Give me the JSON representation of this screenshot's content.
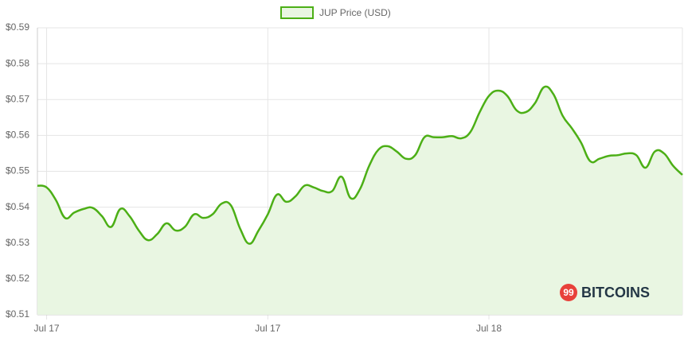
{
  "chart_data": {
    "type": "line",
    "series": [
      {
        "name": "JUP Price (USD)",
        "color": "#4caf16",
        "fill": "#e9f6e2",
        "values": [
          0.546,
          0.5455,
          0.542,
          0.537,
          0.5385,
          0.5395,
          0.5398,
          0.5375,
          0.5345,
          0.5395,
          0.5375,
          0.5335,
          0.5308,
          0.5325,
          0.5355,
          0.5335,
          0.5345,
          0.538,
          0.537,
          0.538,
          0.541,
          0.5405,
          0.534,
          0.5298,
          0.5335,
          0.538,
          0.5435,
          0.5415,
          0.543,
          0.546,
          0.5455,
          0.5445,
          0.5445,
          0.5485,
          0.5425,
          0.545,
          0.5515,
          0.556,
          0.557,
          0.5555,
          0.5535,
          0.5545,
          0.5595,
          0.5595,
          0.5595,
          0.5598,
          0.5592,
          0.561,
          0.5665,
          0.571,
          0.5725,
          0.571,
          0.567,
          0.5665,
          0.569,
          0.5735,
          0.5715,
          0.5655,
          0.562,
          0.558,
          0.5528,
          0.5535,
          0.5543,
          0.5545,
          0.555,
          0.5545,
          0.551,
          0.5555,
          0.555,
          0.5515,
          0.549
        ]
      }
    ],
    "categories": [
      null,
      "Jul 17",
      null,
      null,
      null,
      null,
      null,
      null,
      null,
      null,
      null,
      null,
      null,
      null,
      null,
      null,
      null,
      null,
      null,
      null,
      null,
      null,
      null,
      null,
      null,
      "Jul 17",
      null,
      null,
      null,
      null,
      null,
      null,
      null,
      null,
      null,
      null,
      null,
      null,
      null,
      null,
      null,
      null,
      null,
      null,
      null,
      null,
      null,
      null,
      null,
      "Jul 18",
      null,
      null,
      null,
      null,
      null,
      null,
      null,
      null,
      null,
      null,
      null,
      null,
      null,
      null,
      null,
      null,
      null,
      null,
      null,
      null,
      null
    ],
    "ylim": [
      0.51,
      0.59
    ],
    "yticks": [
      {
        "value": 0.51,
        "label": "$0.51"
      },
      {
        "value": 0.52,
        "label": "$0.52"
      },
      {
        "value": 0.53,
        "label": "$0.53"
      },
      {
        "value": 0.54,
        "label": "$0.54"
      },
      {
        "value": 0.55,
        "label": "$0.55"
      },
      {
        "value": 0.56,
        "label": "$0.56"
      },
      {
        "value": 0.57,
        "label": "$0.57"
      },
      {
        "value": 0.58,
        "label": "$0.58"
      },
      {
        "value": 0.59,
        "label": "$0.59"
      }
    ],
    "grid": true,
    "legend": "top",
    "watermark": {
      "icon": "99",
      "text": "BITCOINS"
    }
  }
}
